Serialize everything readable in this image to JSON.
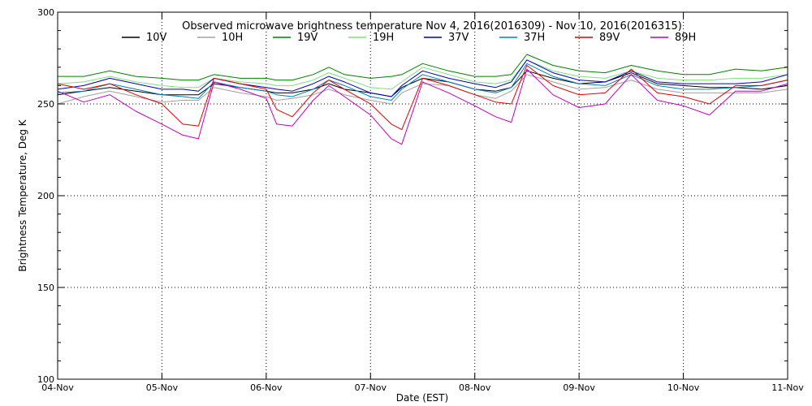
{
  "chart_data": {
    "type": "line",
    "title": "Observed microwave brightness temperature Nov  4, 2016(2016309) - Nov 10, 2016(2016315)",
    "xlabel": "Date (EST)",
    "ylabel": "Brightness Temperature, Deg K",
    "ylim": [
      100,
      300
    ],
    "xlim": [
      0,
      7
    ],
    "x_unit": "days since 04-Nov 00:00 EST",
    "grid": true,
    "legend_position": "top",
    "x_ticks": [
      {
        "value": 0,
        "label": "04-Nov"
      },
      {
        "value": 1,
        "label": "05-Nov"
      },
      {
        "value": 2,
        "label": "06-Nov"
      },
      {
        "value": 3,
        "label": "07-Nov"
      },
      {
        "value": 4,
        "label": "08-Nov"
      },
      {
        "value": 5,
        "label": "09-Nov"
      },
      {
        "value": 6,
        "label": "10-Nov"
      },
      {
        "value": 7,
        "label": "11-Nov"
      }
    ],
    "y_ticks": [
      100,
      150,
      200,
      250,
      300
    ],
    "x": [
      0,
      0.25,
      0.5,
      0.75,
      1.0,
      1.2,
      1.35,
      1.5,
      1.75,
      2.0,
      2.1,
      2.25,
      2.45,
      2.6,
      2.75,
      3.0,
      3.2,
      3.3,
      3.5,
      3.75,
      4.0,
      4.2,
      4.35,
      4.5,
      4.75,
      5.0,
      5.25,
      5.5,
      5.75,
      6.0,
      6.25,
      6.5,
      6.75,
      7.0
    ],
    "series": [
      {
        "name": "10V",
        "color": "#000000",
        "values": [
          255,
          257,
          259,
          257,
          255,
          255,
          255,
          261,
          259,
          257,
          256,
          256,
          258,
          261,
          258,
          256,
          254,
          259,
          264,
          262,
          258,
          257,
          259,
          268,
          264,
          261,
          262,
          267,
          261,
          260,
          259,
          259,
          258,
          260
        ]
      },
      {
        "name": "10H",
        "color": "#a0a0a0",
        "values": [
          250,
          254,
          257,
          254,
          251,
          252,
          252,
          259,
          256,
          254,
          252,
          253,
          255,
          258,
          255,
          252,
          250,
          256,
          261,
          260,
          255,
          253,
          257,
          266,
          262,
          258,
          259,
          263,
          258,
          256,
          256,
          256,
          256,
          258
        ]
      },
      {
        "name": "19V",
        "color": "#008000",
        "values": [
          265,
          265,
          268,
          265,
          264,
          263,
          263,
          266,
          264,
          264,
          263,
          263,
          266,
          270,
          266,
          264,
          265,
          266,
          272,
          268,
          265,
          265,
          266,
          277,
          271,
          268,
          267,
          271,
          268,
          266,
          266,
          269,
          268,
          270
        ]
      },
      {
        "name": "19H",
        "color": "#7fe07f",
        "values": [
          261,
          262,
          265,
          262,
          260,
          259,
          259,
          264,
          262,
          261,
          260,
          260,
          263,
          267,
          264,
          259,
          258,
          262,
          270,
          266,
          262,
          261,
          263,
          274,
          268,
          265,
          264,
          268,
          264,
          263,
          263,
          264,
          264,
          266
        ]
      },
      {
        "name": "37V",
        "color": "#0000c0",
        "values": [
          258,
          260,
          264,
          261,
          258,
          258,
          257,
          264,
          261,
          259,
          258,
          257,
          261,
          265,
          262,
          256,
          254,
          260,
          268,
          264,
          261,
          259,
          262,
          274,
          267,
          263,
          262,
          268,
          262,
          261,
          261,
          261,
          262,
          266
        ]
      },
      {
        "name": "37H",
        "color": "#0080c0",
        "values": [
          256,
          257,
          261,
          258,
          255,
          254,
          253,
          262,
          259,
          257,
          255,
          254,
          258,
          263,
          260,
          254,
          252,
          258,
          266,
          262,
          258,
          256,
          259,
          272,
          265,
          261,
          260,
          266,
          260,
          258,
          258,
          259,
          260,
          263
        ]
      },
      {
        "name": "89V",
        "color": "#e00000",
        "values": [
          261,
          258,
          261,
          255,
          250,
          239,
          238,
          264,
          261,
          258,
          247,
          243,
          256,
          263,
          258,
          250,
          239,
          236,
          264,
          260,
          255,
          251,
          250,
          271,
          260,
          255,
          256,
          269,
          256,
          254,
          250,
          260,
          260,
          263
        ]
      },
      {
        "name": "89H",
        "color": "#c000c0",
        "values": [
          257,
          251,
          255,
          246,
          239,
          233,
          231,
          262,
          258,
          253,
          239,
          238,
          252,
          260,
          254,
          244,
          231,
          228,
          262,
          256,
          249,
          243,
          240,
          269,
          255,
          248,
          250,
          266,
          252,
          249,
          244,
          257,
          257,
          261
        ]
      }
    ]
  }
}
